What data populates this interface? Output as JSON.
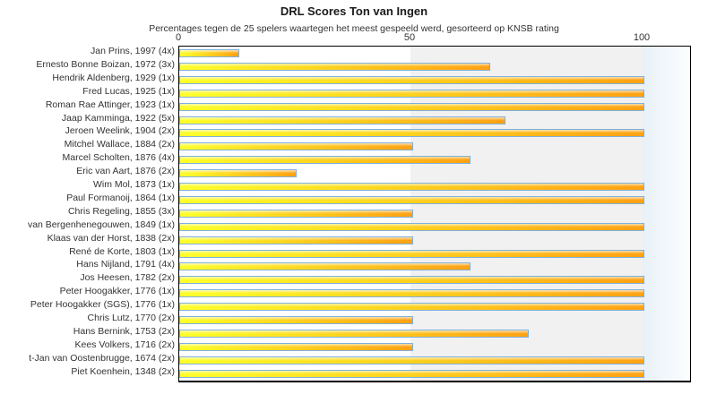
{
  "chart_data": {
    "type": "bar",
    "orientation": "horizontal",
    "title": "DRL Scores Ton van Ingen",
    "subtitle": "Percentages tegen de 25 spelers waartegen het meest gespeeld werd, gesorteerd op KNSB rating",
    "xlabel": "",
    "ylabel": "",
    "xlim": [
      0,
      100
    ],
    "x_ticks": [
      0,
      50,
      100
    ],
    "x_tick_labels": [
      "0",
      "50",
      "100"
    ],
    "grid": "off",
    "legend": "none",
    "background_bands": [
      {
        "from": 0,
        "to": 50,
        "color": "#ffffff"
      },
      {
        "from": 50,
        "to": 100,
        "color": "#f1f1f1"
      },
      {
        "from": 100,
        "to": 110,
        "color": "#e8f1f8"
      }
    ],
    "categories": [
      "Jan Prins, 1997 (4x)",
      "Ernesto Bonne Boizan, 1972 (3x)",
      "Hendrik Aldenberg, 1929 (1x)",
      "Fred Lucas, 1925 (1x)",
      "Roman Rae Attinger, 1923 (1x)",
      "Jaap Kamminga, 1922 (5x)",
      "Jeroen Weelink, 1904 (2x)",
      "Mitchel Wallace, 1884 (2x)",
      "Marcel Scholten, 1876 (4x)",
      "Eric van Aart, 1876 (2x)",
      "Wim Mol, 1873 (1x)",
      "Paul Formanoij, 1864 (1x)",
      "Chris Regeling, 1855 (3x)",
      "van Bergenhenegouwen, 1849 (1x)",
      "Klaas van der Horst, 1838 (2x)",
      "René de Korte, 1803 (1x)",
      "Hans Nijland, 1791 (4x)",
      "Jos Heesen, 1782 (2x)",
      "Peter Hoogakker, 1776 (1x)",
      "Peter Hoogakker (SGS), 1776 (1x)",
      "Chris Lutz, 1770 (2x)",
      "Hans Bernink, 1753 (2x)",
      "Kees Volkers, 1716 (2x)",
      "t-Jan van Oostenbrugge, 1674 (2x)",
      "Piet Koenhein, 1348 (2x)"
    ],
    "values": [
      12.5,
      66.7,
      100,
      100,
      100,
      70,
      100,
      50,
      62.5,
      25,
      100,
      100,
      50,
      100,
      50,
      100,
      62.5,
      100,
      100,
      100,
      50,
      75,
      50,
      100,
      100
    ],
    "colors": {
      "bar_gradient_start": "#ffff2a",
      "bar_gradient_end": "#ffa113",
      "bar_border": "#7fb0dc",
      "plot_border": "#000000",
      "band_mid_gray": "#f1f1f1",
      "band_right_blue": "#e8f1f8",
      "text": "#333333"
    }
  }
}
